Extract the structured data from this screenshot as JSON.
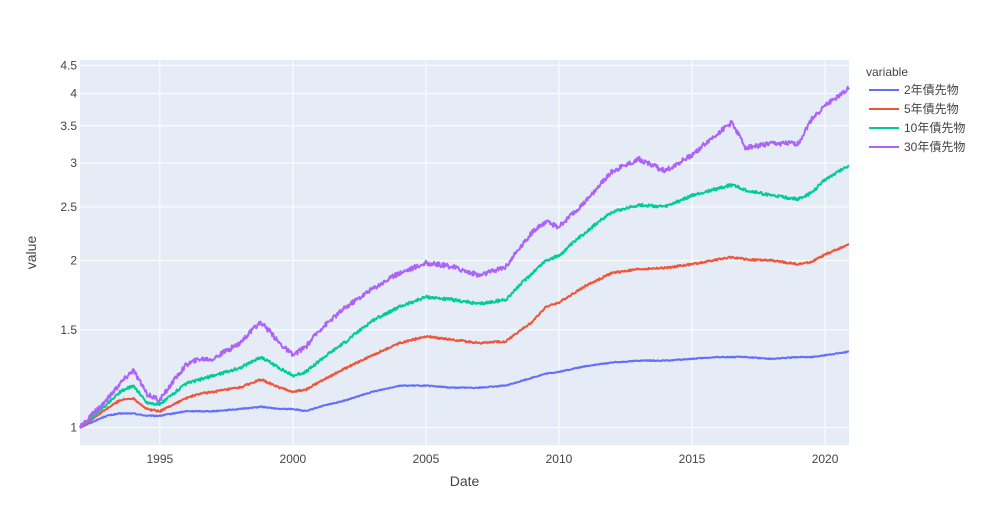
{
  "chart_data": {
    "type": "line",
    "xlabel": "Date",
    "ylabel": "value",
    "y_scale": "log",
    "xlim": [
      1992.0,
      2020.9
    ],
    "ylim": [
      0.93,
      4.6
    ],
    "x_ticks": [
      "1995",
      "2000",
      "2005",
      "2010",
      "2015",
      "2020"
    ],
    "x_tick_values": [
      1995,
      2000,
      2005,
      2010,
      2015,
      2020
    ],
    "y_ticks": [
      "1",
      "1.5",
      "2",
      "2.5",
      "3",
      "3.5",
      "4",
      "4.5"
    ],
    "y_tick_values": [
      1,
      1.5,
      2,
      2.5,
      3,
      3.5,
      4,
      4.5
    ],
    "grid": true,
    "plot_background": "#e5ecf6",
    "legend_title": "variable",
    "legend_position": "right",
    "x": [
      1992.0,
      1993.0,
      1993.5,
      1994.0,
      1994.5,
      1995.0,
      1996.0,
      1996.5,
      1997.0,
      1998.0,
      1998.8,
      1999.5,
      2000.0,
      2000.5,
      2001.0,
      2002.0,
      2003.0,
      2004.0,
      2005.0,
      2006.0,
      2007.0,
      2008.0,
      2009.0,
      2009.5,
      2010.0,
      2011.0,
      2012.0,
      2013.0,
      2014.0,
      2015.0,
      2016.0,
      2016.5,
      2017.0,
      2018.0,
      2019.0,
      2019.5,
      2020.0,
      2020.9
    ],
    "series": [
      {
        "name": "2年債先物",
        "color": "#636efa",
        "values": [
          1.0,
          1.05,
          1.06,
          1.06,
          1.05,
          1.05,
          1.07,
          1.07,
          1.07,
          1.08,
          1.09,
          1.08,
          1.08,
          1.07,
          1.09,
          1.12,
          1.16,
          1.19,
          1.19,
          1.18,
          1.18,
          1.19,
          1.23,
          1.25,
          1.26,
          1.29,
          1.31,
          1.32,
          1.32,
          1.33,
          1.34,
          1.34,
          1.34,
          1.33,
          1.34,
          1.34,
          1.35,
          1.37
        ]
      },
      {
        "name": "5年債先物",
        "color": "#ef553b",
        "values": [
          1.0,
          1.08,
          1.12,
          1.13,
          1.08,
          1.07,
          1.13,
          1.15,
          1.16,
          1.18,
          1.22,
          1.18,
          1.16,
          1.17,
          1.21,
          1.28,
          1.35,
          1.42,
          1.46,
          1.44,
          1.42,
          1.43,
          1.55,
          1.65,
          1.68,
          1.8,
          1.9,
          1.93,
          1.94,
          1.97,
          2.01,
          2.03,
          2.01,
          2.0,
          1.97,
          1.99,
          2.05,
          2.14
        ]
      },
      {
        "name": "10年債先物",
        "color": "#00cc96",
        "values": [
          1.0,
          1.1,
          1.16,
          1.19,
          1.11,
          1.1,
          1.2,
          1.22,
          1.24,
          1.28,
          1.34,
          1.28,
          1.24,
          1.26,
          1.32,
          1.43,
          1.56,
          1.65,
          1.72,
          1.7,
          1.67,
          1.7,
          1.9,
          2.0,
          2.04,
          2.25,
          2.45,
          2.52,
          2.5,
          2.62,
          2.7,
          2.74,
          2.68,
          2.62,
          2.58,
          2.65,
          2.8,
          2.97
        ]
      },
      {
        "name": "30年債先物",
        "color": "#ab63fa",
        "values": [
          1.0,
          1.12,
          1.2,
          1.27,
          1.15,
          1.12,
          1.3,
          1.33,
          1.33,
          1.42,
          1.55,
          1.42,
          1.35,
          1.4,
          1.5,
          1.65,
          1.78,
          1.9,
          1.98,
          1.95,
          1.88,
          1.95,
          2.25,
          2.35,
          2.3,
          2.55,
          2.9,
          3.05,
          2.9,
          3.1,
          3.4,
          3.55,
          3.2,
          3.25,
          3.25,
          3.6,
          3.8,
          4.1
        ]
      }
    ]
  }
}
